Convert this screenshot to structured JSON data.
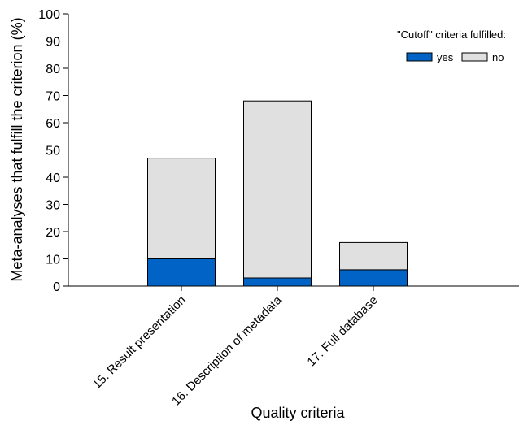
{
  "chart_data": {
    "type": "bar",
    "stacked": true,
    "categories": [
      "15. Result presentation",
      "16. Description of metadata",
      "17. Full database"
    ],
    "series": [
      {
        "name": "yes",
        "color": "#0063c5",
        "values": [
          10,
          3,
          6
        ]
      },
      {
        "name": "no",
        "color": "#e0e0e0",
        "values": [
          37,
          65,
          10
        ]
      }
    ],
    "xlabel": "Quality criteria",
    "ylabel": "Meta-analyses that fulfill the criterion  (%)",
    "ylim": [
      0,
      100
    ],
    "yticks": [
      "0",
      "10",
      "20",
      "30",
      "40",
      "50",
      "60",
      "70",
      "80",
      "90",
      "100"
    ],
    "grid": false,
    "legend": {
      "title": "\"Cutoff\" criteria fulfilled:",
      "placement": "top-right"
    }
  }
}
